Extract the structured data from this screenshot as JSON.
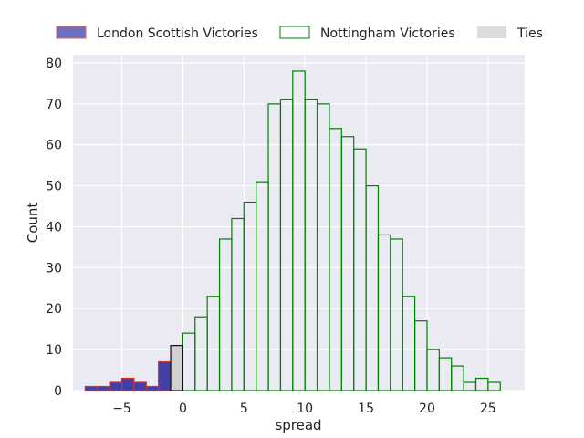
{
  "chart_data": {
    "type": "bar",
    "title": "",
    "xlabel": "spread",
    "ylabel": "Count",
    "xlim": [
      -9,
      28
    ],
    "ylim": [
      0,
      82
    ],
    "xticks": [
      -5,
      0,
      5,
      10,
      15,
      20,
      25
    ],
    "xtick_labels": [
      "−5",
      "0",
      "5",
      "10",
      "15",
      "20",
      "25"
    ],
    "yticks": [
      0,
      10,
      20,
      30,
      40,
      50,
      60,
      70,
      80
    ],
    "grid": true,
    "legend_position": "top-center",
    "bin_width": 1,
    "series": [
      {
        "name": "London Scottish Victories",
        "face_color": "#4040a8",
        "edge_color": "#d03030",
        "fill": true,
        "x": [
          -8,
          -7,
          -6,
          -5,
          -4,
          -3,
          -2,
          -1
        ],
        "values": [
          1,
          1,
          2,
          3,
          2,
          1,
          7,
          0
        ]
      },
      {
        "name": "Nottingham Victories",
        "face_color": "none",
        "edge_color": "#008000",
        "fill": false,
        "x": [
          0,
          1,
          2,
          3,
          4,
          5,
          6,
          7,
          8,
          9,
          10,
          11,
          12,
          13,
          14,
          15,
          16,
          17,
          18,
          19,
          20,
          21,
          22,
          23,
          24,
          25
        ],
        "values": [
          14,
          18,
          23,
          37,
          42,
          46,
          51,
          70,
          71,
          78,
          71,
          70,
          64,
          62,
          59,
          50,
          38,
          37,
          23,
          17,
          10,
          8,
          6,
          2,
          3,
          2
        ]
      },
      {
        "name": "Ties",
        "face_color": "#d0d0d0",
        "edge_color": "#111111",
        "fill": true,
        "x": [
          -1
        ],
        "values": [
          11
        ]
      }
    ]
  }
}
